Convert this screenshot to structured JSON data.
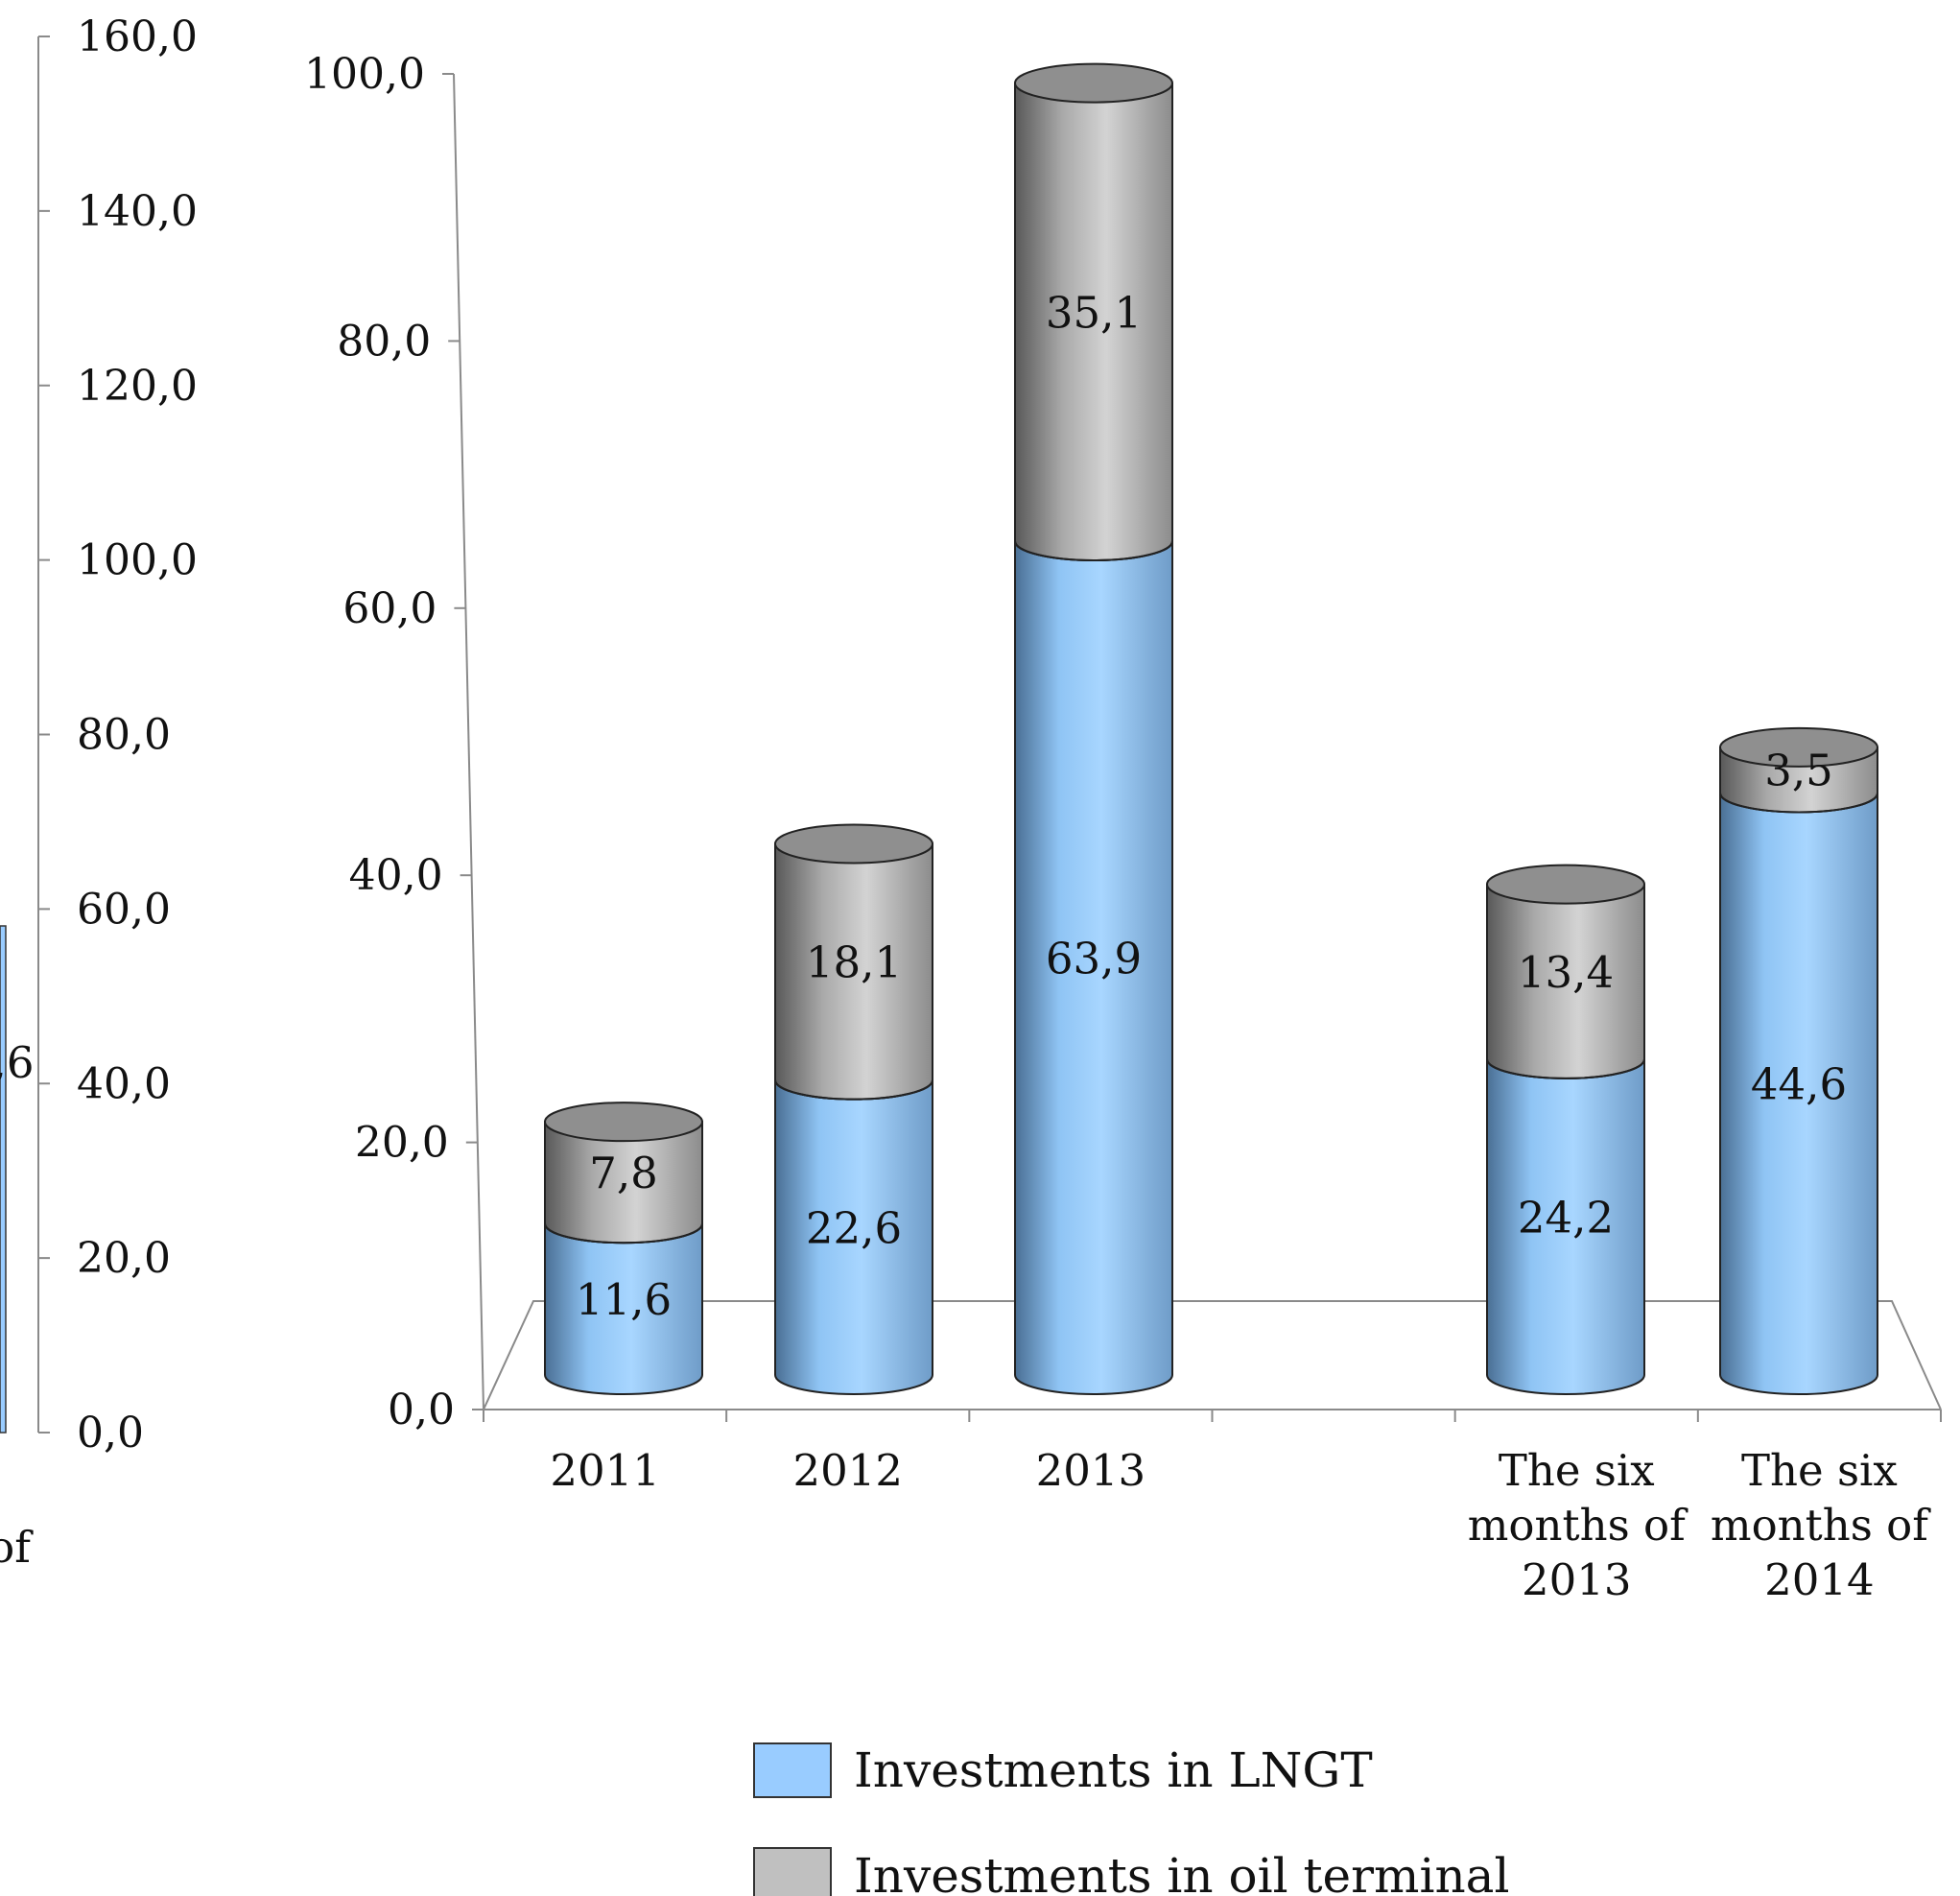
{
  "chart_data": {
    "type": "bar",
    "stacked": true,
    "style": "3d-cylinder",
    "categories": [
      [
        "2011"
      ],
      [
        "2012"
      ],
      [
        "2013"
      ],
      [
        ""
      ],
      [
        "The six",
        "months of",
        "2013"
      ],
      [
        "The six",
        "months of",
        "2014"
      ]
    ],
    "series": [
      {
        "name": "Investments in LNGT",
        "color": "#99ccff",
        "values": [
          11.6,
          22.6,
          63.9,
          null,
          24.2,
          44.6
        ],
        "labels": [
          "11,6",
          "22,6",
          "63,9",
          "",
          "24,2",
          "44,6"
        ]
      },
      {
        "name": "Investments in oil terminal",
        "color": "#c0c0c0",
        "values": [
          7.8,
          18.1,
          35.1,
          null,
          13.4,
          3.5
        ],
        "labels": [
          "7,8",
          "18,1",
          "35,1",
          "",
          "13,4",
          "3,5"
        ]
      }
    ],
    "ylim": [
      0,
      100
    ],
    "yticks": [
      "0,0",
      "20,0",
      "40,0",
      "60,0",
      "80,0",
      "100,0"
    ],
    "legend_position": "bottom",
    "clipped_left_axis": {
      "ticks": [
        "0,0",
        "20,0",
        "40,0",
        "60,0",
        "80,0",
        "100,0",
        "120,0",
        "140,0",
        "160,0"
      ],
      "partial_label": ",6",
      "partial_category": "of"
    }
  }
}
